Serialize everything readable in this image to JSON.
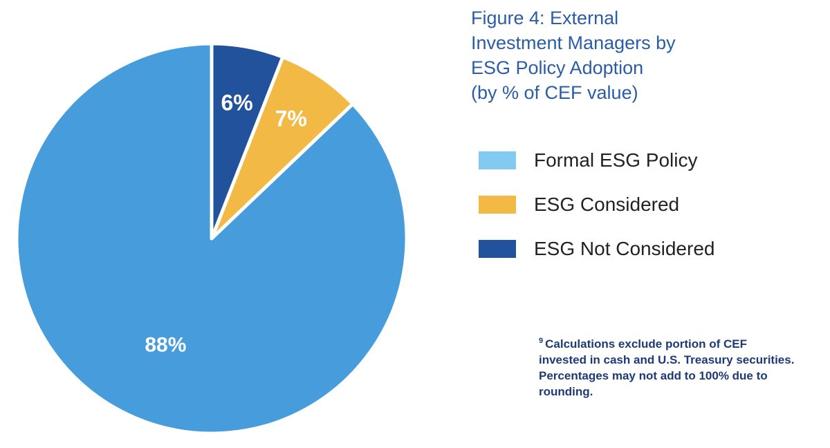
{
  "chart_data": {
    "type": "pie",
    "title_lines": [
      "Figure 4: External",
      "Investment Managers by",
      "ESG Policy Adoption",
      "(by % of CEF value)"
    ],
    "categories": [
      "Formal ESG Policy",
      "ESG Considered",
      "ESG Not Considered"
    ],
    "values": [
      88,
      7,
      6
    ],
    "data_labels": [
      "88%",
      "7%",
      "6%"
    ],
    "slice_colors": [
      "#479ddb",
      "#f2ba44",
      "#22529c"
    ],
    "legend_colors": [
      "#82caf2",
      "#f2ba44",
      "#22529c"
    ],
    "legend_position": "right",
    "footnote": {
      "marker": "9",
      "lines": [
        "Calculations exclude portion of CEF",
        "invested in cash and U.S. Treasury securities.",
        "Percentages may not add to 100% due to",
        "rounding."
      ]
    }
  }
}
